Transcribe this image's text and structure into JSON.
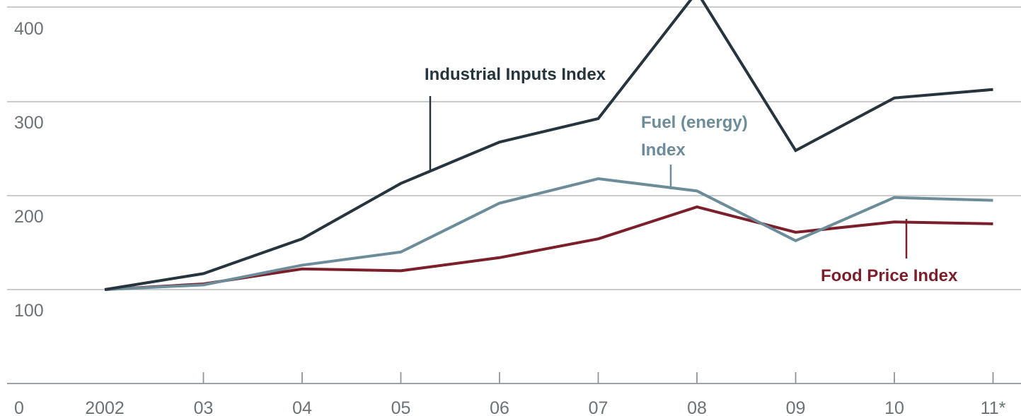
{
  "chart_data": {
    "type": "line",
    "title": "",
    "xlabel": "",
    "ylabel": "",
    "ylim": [
      0,
      420
    ],
    "categories": [
      "2002",
      "03",
      "04",
      "05",
      "06",
      "07",
      "08",
      "09",
      "10",
      "11*"
    ],
    "yticks": [
      "0",
      "100",
      "200",
      "300",
      "400"
    ],
    "grid": true,
    "series": [
      {
        "name": "Industrial Inputs Index",
        "color": "#26343d",
        "values": [
          100,
          117,
          154,
          213,
          257,
          282,
          417,
          248,
          304,
          313
        ]
      },
      {
        "name": "Fuel (energy)\nIndex",
        "color": "#6c8c9a",
        "values": [
          100,
          105,
          126,
          140,
          192,
          218,
          205,
          152,
          198,
          195
        ]
      },
      {
        "name": "Food Price Index",
        "color": "#7b1f2b",
        "values": [
          100,
          106,
          122,
          120,
          134,
          154,
          188,
          161,
          172,
          170
        ]
      }
    ]
  }
}
